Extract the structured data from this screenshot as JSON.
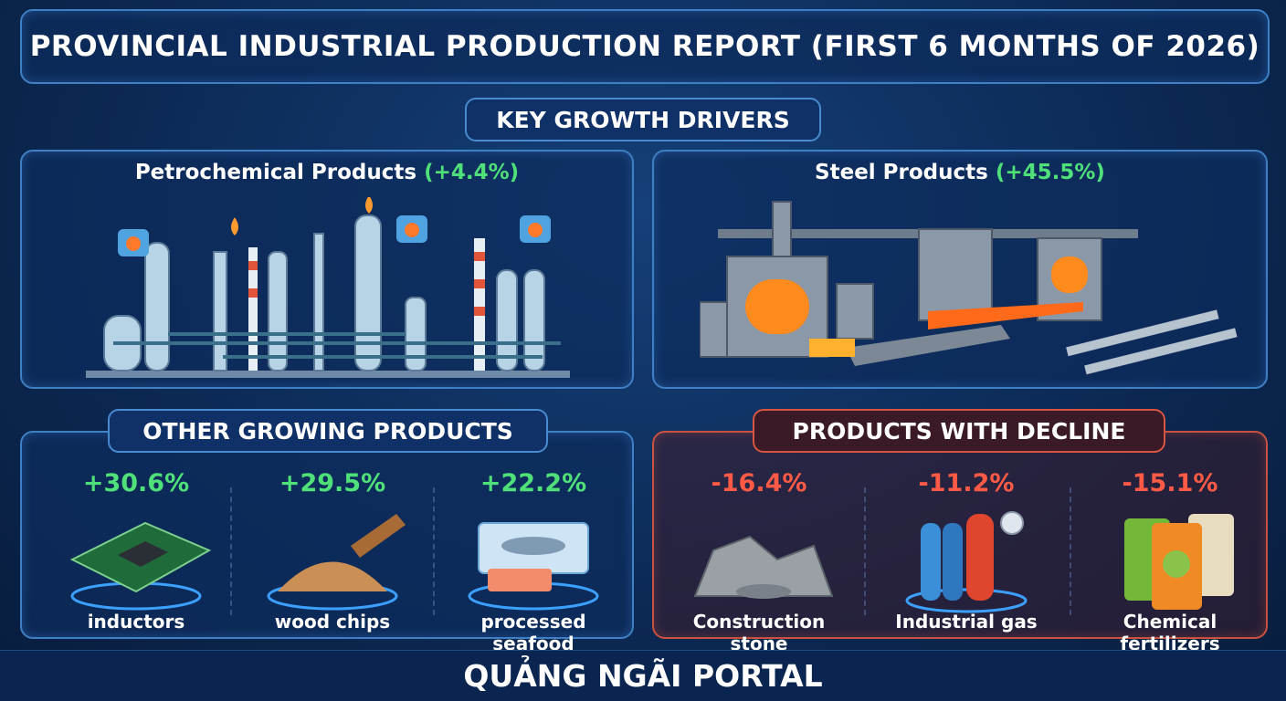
{
  "header": {
    "title": "PROVINCIAL INDUSTRIAL PRODUCTION REPORT (FIRST 6 MONTHS OF 2026)"
  },
  "key_drivers": {
    "heading": "KEY GROWTH DRIVERS",
    "items": [
      {
        "name": "Petrochemical Products",
        "change": "(+4.4%)"
      },
      {
        "name": "Steel Products",
        "change": "(+45.5%)"
      }
    ]
  },
  "other_growing": {
    "heading": "OTHER GROWING PRODUCTS",
    "items": [
      {
        "change": "+30.6%",
        "label": "inductors"
      },
      {
        "change": "+29.5%",
        "label": "wood chips"
      },
      {
        "change": "+22.2%",
        "label": "processed seafood"
      }
    ]
  },
  "decline": {
    "heading": "PRODUCTS WITH DECLINE",
    "items": [
      {
        "change": "-16.4%",
        "label": "Construction stone"
      },
      {
        "change": "-11.2%",
        "label": "Industrial gas"
      },
      {
        "change": "-15.1%",
        "label": "Chemical fertilizers"
      }
    ]
  },
  "footer": {
    "text": "QUẢNG NGÃI PORTAL"
  }
}
